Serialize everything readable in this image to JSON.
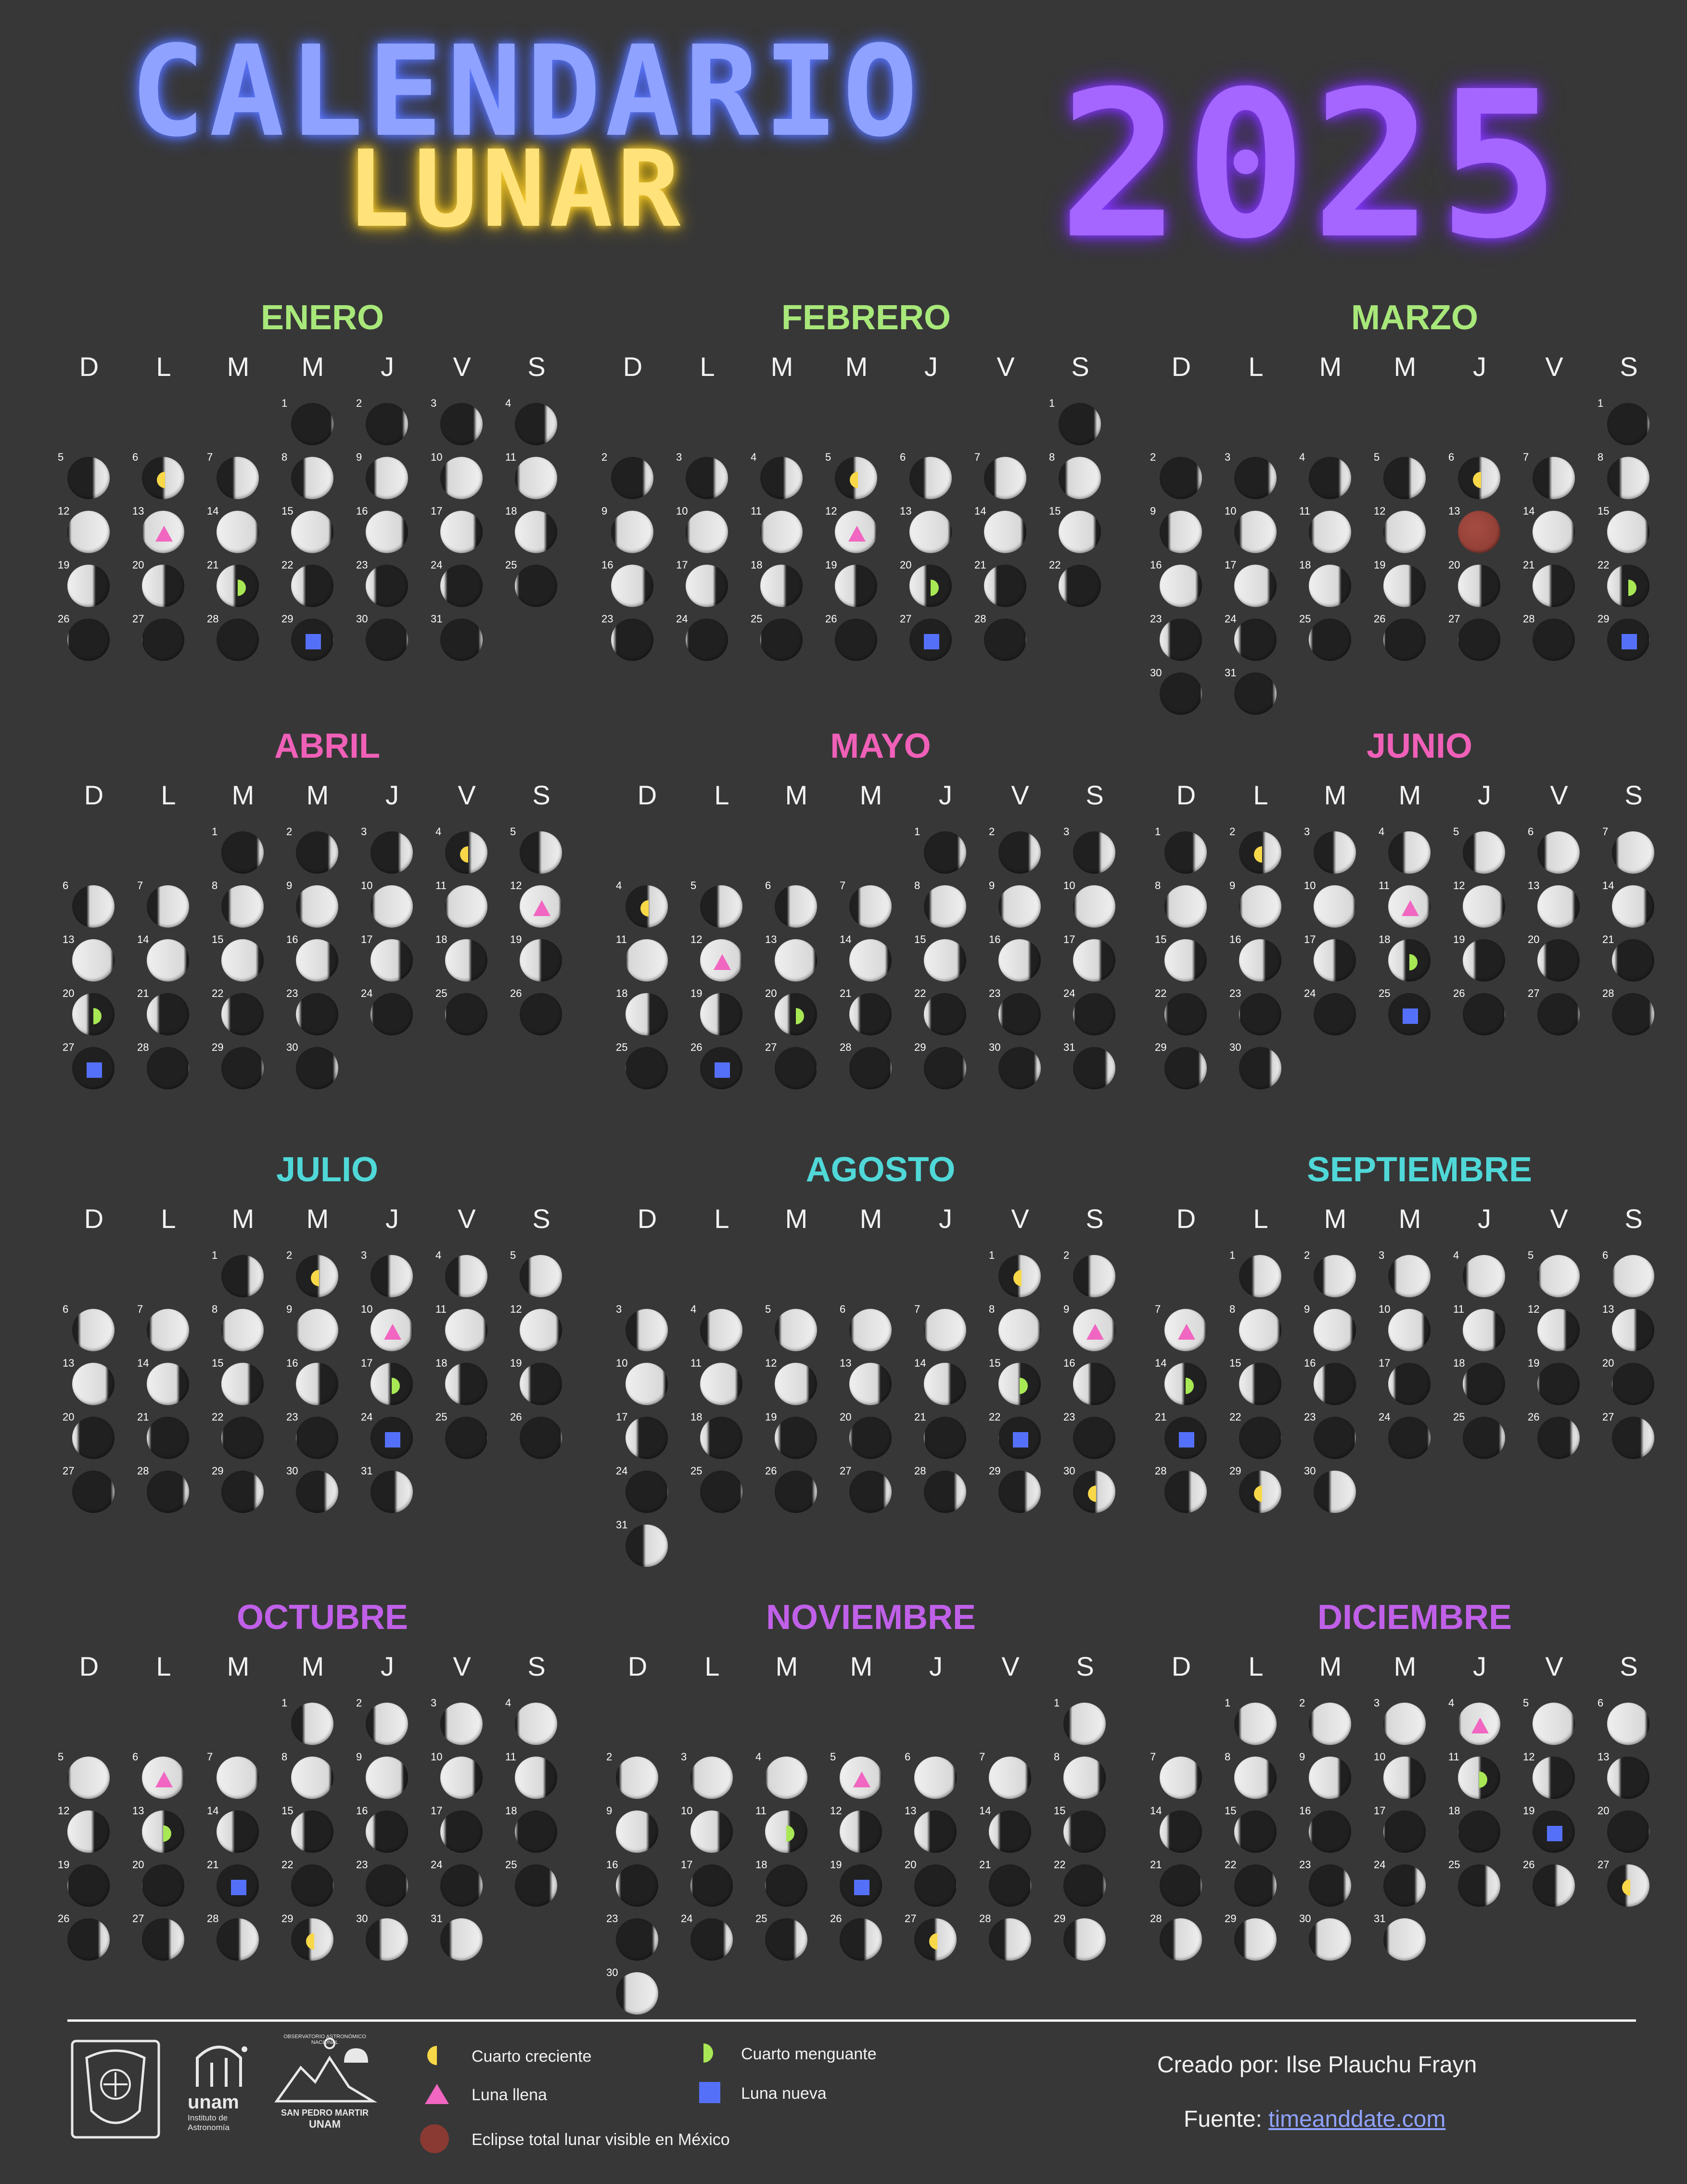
{
  "header": {
    "line1": "CALENDARIO",
    "line2": "LUNAR",
    "year": "2025"
  },
  "weekdays": [
    "D",
    "L",
    "M",
    "M",
    "J",
    "V",
    "S"
  ],
  "colors": {
    "cuarto_creciente": "#f8d848",
    "luna_llena": "#f066c0",
    "cuarto_menguante": "#a8e855",
    "luna_nueva": "#5570f8",
    "eclipse": "#8a3a32",
    "moon_bright": "#d8d8d8",
    "moon_dark": "#202020"
  },
  "months": [
    {
      "name": "ENERO",
      "color": "#a8e87a",
      "start": 3,
      "days": 31,
      "events": {
        "6": "cc",
        "13": "ll",
        "21": "cm",
        "29": "ln"
      }
    },
    {
      "name": "FEBRERO",
      "color": "#a8e87a",
      "start": 6,
      "days": 28,
      "events": {
        "5": "cc",
        "12": "ll",
        "20": "cm",
        "27": "ln"
      }
    },
    {
      "name": "MARZO",
      "color": "#a8e87a",
      "start": 6,
      "days": 31,
      "events": {
        "6": "cc",
        "13": "ec",
        "22": "cm",
        "29": "ln"
      }
    },
    {
      "name": "ABRIL",
      "color": "#f060b8",
      "start": 2,
      "days": 30,
      "events": {
        "4": "cc",
        "12": "ll",
        "20": "cm",
        "27": "ln"
      }
    },
    {
      "name": "MAYO",
      "color": "#f060b8",
      "start": 4,
      "days": 31,
      "events": {
        "4": "cc",
        "12": "ll",
        "20": "cm",
        "26": "ln"
      }
    },
    {
      "name": "JUNIO",
      "color": "#f060b8",
      "start": 0,
      "days": 30,
      "events": {
        "2": "cc",
        "11": "ll",
        "18": "cm",
        "25": "ln"
      }
    },
    {
      "name": "JULIO",
      "color": "#50d8d8",
      "start": 2,
      "days": 31,
      "events": {
        "2": "cc",
        "10": "ll",
        "17": "cm",
        "24": "ln"
      }
    },
    {
      "name": "AGOSTO",
      "color": "#50d8d8",
      "start": 5,
      "days": 31,
      "events": {
        "1": "cc",
        "9": "ll",
        "15": "cm",
        "22": "ln",
        "30": "cc"
      }
    },
    {
      "name": "SEPTIEMBRE",
      "color": "#50d8d8",
      "start": 1,
      "days": 30,
      "events": {
        "7": "ll",
        "14": "cm",
        "21": "ln",
        "29": "cc"
      }
    },
    {
      "name": "OCTUBRE",
      "color": "#c060e8",
      "start": 3,
      "days": 31,
      "events": {
        "6": "ll",
        "13": "cm",
        "21": "ln",
        "29": "cc"
      }
    },
    {
      "name": "NOVIEMBRE",
      "color": "#c060e8",
      "start": 6,
      "days": 30,
      "events": {
        "5": "ll",
        "11": "cm",
        "19": "ln",
        "27": "cc"
      }
    },
    {
      "name": "DICIEMBRE",
      "color": "#c060e8",
      "start": 1,
      "days": 31,
      "events": {
        "4": "ll",
        "11": "cm",
        "19": "ln",
        "27": "cc"
      }
    }
  ],
  "legend": {
    "cuarto_creciente": "Cuarto creciente",
    "cuarto_menguante": "Cuarto menguante",
    "luna_llena": "Luna llena",
    "luna_nueva": "Luna nueva",
    "eclipse": "Eclipse total lunar visible en México"
  },
  "logos": {
    "unam": "unam",
    "ia_line1": "Instituto de",
    "ia_line2": "Astronomía",
    "oan_arc": "OBSERVATORIO ASTRONÓMICO NACIONAL",
    "oan_line1": "SAN PEDRO MARTIR",
    "oan_line2": "UNAM"
  },
  "credits": {
    "creado_por": "Creado por: Ilse Plauchu Frayn",
    "fuente_label": "Fuente:",
    "fuente_link": "timeanddate.com"
  }
}
